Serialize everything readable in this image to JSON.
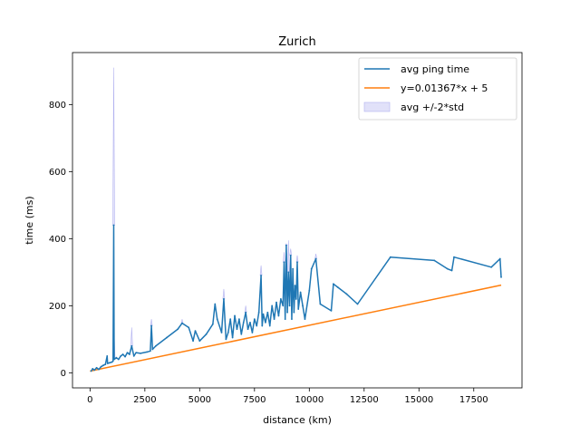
{
  "chart_data": {
    "type": "line",
    "title": "Zurich",
    "xlabel": "distance (km)",
    "ylabel": "time (ms)",
    "xlim": [
      -800,
      19700
    ],
    "ylim": [
      -45,
      955
    ],
    "xticks": [
      0,
      2500,
      5000,
      7500,
      10000,
      12500,
      15000,
      17500
    ],
    "yticks": [
      0,
      200,
      400,
      600,
      800
    ],
    "xtick_labels": [
      "0",
      "2500",
      "5000",
      "7500",
      "10000",
      "12500",
      "15000",
      "17500"
    ],
    "ytick_labels": [
      "0",
      "200",
      "400",
      "600",
      "800"
    ],
    "grid": false,
    "legend_position": "top-right",
    "colors": {
      "avg": "#1f77b4",
      "fit": "#ff7f0e",
      "band": "#b3b3f0"
    },
    "series": [
      {
        "name": "avg ping time",
        "points": [
          [
            50,
            5
          ],
          [
            120,
            12
          ],
          [
            200,
            8
          ],
          [
            300,
            15
          ],
          [
            400,
            10
          ],
          [
            500,
            18
          ],
          [
            600,
            22
          ],
          [
            700,
            25
          ],
          [
            780,
            50
          ],
          [
            800,
            28
          ],
          [
            900,
            30
          ],
          [
            1000,
            32
          ],
          [
            1050,
            35
          ],
          [
            1080,
            440
          ],
          [
            1100,
            40
          ],
          [
            1200,
            45
          ],
          [
            1300,
            40
          ],
          [
            1400,
            50
          ],
          [
            1500,
            55
          ],
          [
            1600,
            48
          ],
          [
            1700,
            60
          ],
          [
            1800,
            55
          ],
          [
            1900,
            80
          ],
          [
            2000,
            50
          ],
          [
            2100,
            60
          ],
          [
            2300,
            58
          ],
          [
            2600,
            62
          ],
          [
            2750,
            65
          ],
          [
            2800,
            140
          ],
          [
            2850,
            70
          ],
          [
            3000,
            80
          ],
          [
            3500,
            105
          ],
          [
            4000,
            130
          ],
          [
            4200,
            148
          ],
          [
            4500,
            135
          ],
          [
            4700,
            95
          ],
          [
            4800,
            125
          ],
          [
            5000,
            95
          ],
          [
            5300,
            115
          ],
          [
            5600,
            145
          ],
          [
            5700,
            205
          ],
          [
            5800,
            160
          ],
          [
            6000,
            120
          ],
          [
            6100,
            220
          ],
          [
            6200,
            100
          ],
          [
            6300,
            120
          ],
          [
            6400,
            160
          ],
          [
            6500,
            105
          ],
          [
            6600,
            170
          ],
          [
            6700,
            130
          ],
          [
            6800,
            160
          ],
          [
            6900,
            115
          ],
          [
            7000,
            150
          ],
          [
            7100,
            180
          ],
          [
            7200,
            130
          ],
          [
            7300,
            150
          ],
          [
            7400,
            120
          ],
          [
            7500,
            160
          ],
          [
            7600,
            140
          ],
          [
            7700,
            180
          ],
          [
            7800,
            290
          ],
          [
            7850,
            140
          ],
          [
            7900,
            175
          ],
          [
            8000,
            150
          ],
          [
            8100,
            180
          ],
          [
            8200,
            140
          ],
          [
            8300,
            200
          ],
          [
            8400,
            160
          ],
          [
            8500,
            210
          ],
          [
            8600,
            170
          ],
          [
            8700,
            220
          ],
          [
            8800,
            200
          ],
          [
            8850,
            330
          ],
          [
            8900,
            160
          ],
          [
            8950,
            380
          ],
          [
            9000,
            180
          ],
          [
            9050,
            300
          ],
          [
            9100,
            200
          ],
          [
            9150,
            350
          ],
          [
            9200,
            160
          ],
          [
            9250,
            310
          ],
          [
            9300,
            180
          ],
          [
            9350,
            260
          ],
          [
            9400,
            220
          ],
          [
            9450,
            330
          ],
          [
            9500,
            190
          ],
          [
            9600,
            240
          ],
          [
            9700,
            200
          ],
          [
            9800,
            160
          ],
          [
            10000,
            245
          ],
          [
            10100,
            310
          ],
          [
            10300,
            340
          ],
          [
            10500,
            205
          ],
          [
            11000,
            185
          ],
          [
            11100,
            265
          ],
          [
            11300,
            255
          ],
          [
            11700,
            235
          ],
          [
            12200,
            205
          ],
          [
            13700,
            345
          ],
          [
            15700,
            335
          ],
          [
            16300,
            310
          ],
          [
            16500,
            305
          ],
          [
            16600,
            345
          ],
          [
            18300,
            315
          ],
          [
            18700,
            340
          ],
          [
            18750,
            285
          ]
        ]
      },
      {
        "name": "y=0.01367*x + 5",
        "slope": 0.01367,
        "intercept": 5,
        "x_range": [
          0,
          18750
        ]
      },
      {
        "name": "avg +/-2*std",
        "spikes": [
          [
            1080,
            910
          ],
          [
            1100,
            120
          ],
          [
            1900,
            135
          ],
          [
            2800,
            160
          ],
          [
            4200,
            160
          ],
          [
            6100,
            250
          ],
          [
            7100,
            200
          ],
          [
            7800,
            320
          ],
          [
            8850,
            360
          ],
          [
            8950,
            385
          ],
          [
            9050,
            395
          ],
          [
            9150,
            370
          ],
          [
            9450,
            350
          ],
          [
            10300,
            355
          ]
        ]
      }
    ]
  }
}
